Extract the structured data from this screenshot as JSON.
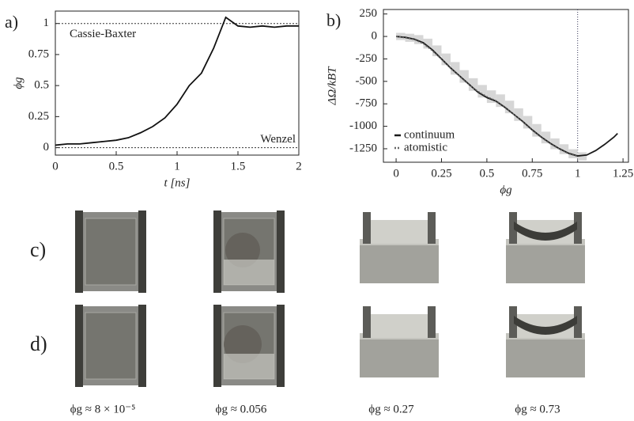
{
  "chart_data": [
    {
      "type": "line",
      "panel_label": "a)",
      "xlabel": "t [ns]",
      "ylabel": "ϕg",
      "x": [
        0,
        0.1,
        0.2,
        0.3,
        0.4,
        0.5,
        0.6,
        0.7,
        0.8,
        0.9,
        1.0,
        1.1,
        1.2,
        1.3,
        1.4,
        1.5,
        1.6,
        1.7,
        1.8,
        1.9,
        2.0
      ],
      "values": [
        0.02,
        0.03,
        0.03,
        0.04,
        0.05,
        0.06,
        0.08,
        0.12,
        0.17,
        0.24,
        0.35,
        0.5,
        0.6,
        0.8,
        1.05,
        0.98,
        0.97,
        0.98,
        0.97,
        0.98,
        0.98
      ],
      "color": "#111",
      "xlim": [
        0,
        2
      ],
      "xticks": [
        0,
        0.5,
        1,
        1.5,
        2
      ],
      "ylim": [
        -0.06,
        1.1
      ],
      "yticks": [
        0,
        0.25,
        0.5,
        0.75,
        1
      ],
      "annotations": [
        {
          "text": "Cassie-Baxter",
          "y": 1
        },
        {
          "text": "Wenzel",
          "y": 0
        }
      ]
    },
    {
      "type": "line",
      "panel_label": "b)",
      "xlabel": "ϕg",
      "ylabel": "ΔΩ/kBT",
      "x": [
        0,
        0.05,
        0.1,
        0.15,
        0.2,
        0.25,
        0.3,
        0.35,
        0.4,
        0.45,
        0.5,
        0.55,
        0.6,
        0.65,
        0.7,
        0.75,
        0.8,
        0.85,
        0.9,
        0.95,
        1.0,
        1.05,
        1.1,
        1.15,
        1.2,
        1.22
      ],
      "series": [
        {
          "name": "continuum",
          "color": "#1a1a1a",
          "values": [
            0,
            -10,
            -30,
            -70,
            -150,
            -250,
            -350,
            -440,
            -530,
            -620,
            -680,
            -720,
            -790,
            -870,
            -950,
            -1040,
            -1120,
            -1190,
            -1250,
            -1300,
            -1330,
            -1320,
            -1270,
            -1200,
            -1120,
            -1080
          ]
        },
        {
          "name": "atomistic",
          "color": "#666",
          "values": [
            0,
            -15,
            -35,
            -80,
            -160,
            -255,
            -355,
            -445,
            -535,
            -610,
            -670,
            -715,
            -785,
            -870,
            -955,
            -1045,
            -1125,
            -1195,
            -1255,
            -1305,
            -1335,
            null,
            null,
            null,
            null,
            null
          ],
          "error": [
            40,
            45,
            50,
            55,
            60,
            65,
            70,
            70,
            70,
            70,
            70,
            70,
            70,
            70,
            70,
            70,
            65,
            60,
            55,
            50,
            45,
            null,
            null,
            null,
            null,
            null
          ]
        }
      ],
      "xlim": [
        -0.07,
        1.28
      ],
      "xticks": [
        0,
        0.25,
        0.5,
        0.75,
        1,
        1.25
      ],
      "ylim": [
        -1400,
        300
      ],
      "yticks": [
        250,
        0,
        -250,
        -500,
        -750,
        -1000,
        -1250
      ],
      "vlines": [
        1
      ],
      "legend": "lower left"
    }
  ],
  "images": {
    "row_labels": [
      "c)",
      "d)"
    ],
    "captions": [
      "ϕg ≈ 8 × 10⁻⁵",
      "ϕg ≈ 0.056",
      "ϕg ≈ 0.27",
      "ϕg ≈ 0.73"
    ]
  }
}
